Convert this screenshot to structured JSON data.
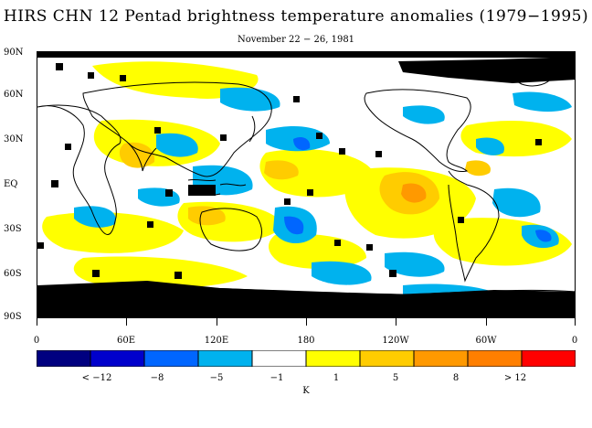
{
  "figure": {
    "title": "HIRS CHN 12 Pentad brightness temperature anomalies (1979−1995)",
    "subtitle": "November 22 − 26, 1981"
  },
  "map": {
    "projection": "equirectangular",
    "lon_range": [
      0,
      360
    ],
    "lat_range": [
      -90,
      90
    ],
    "lat_labels": [
      "90N",
      "60N",
      "30N",
      "EQ",
      "30S",
      "60S",
      "90S"
    ],
    "lon_labels": [
      "0",
      "60E",
      "120E",
      "180",
      "120W",
      "60W",
      "0"
    ],
    "coastlines": "continents outlined in black",
    "missing_data_color": "#000000",
    "anomaly_field": "filled contours (yellow/orange positive, blue negative), black = missing data"
  },
  "colorbar": {
    "colors": [
      "#000080",
      "#0000cc",
      "#0066ff",
      "#00b2ee",
      "#ffffff",
      "#ffff00",
      "#ffcc00",
      "#ff9900",
      "#ff7f00",
      "#ff0000"
    ],
    "tick_labels": [
      "< −12",
      "−8",
      "−5",
      "−1",
      "1",
      "5",
      "8",
      "> 12"
    ],
    "unit": "K"
  }
}
